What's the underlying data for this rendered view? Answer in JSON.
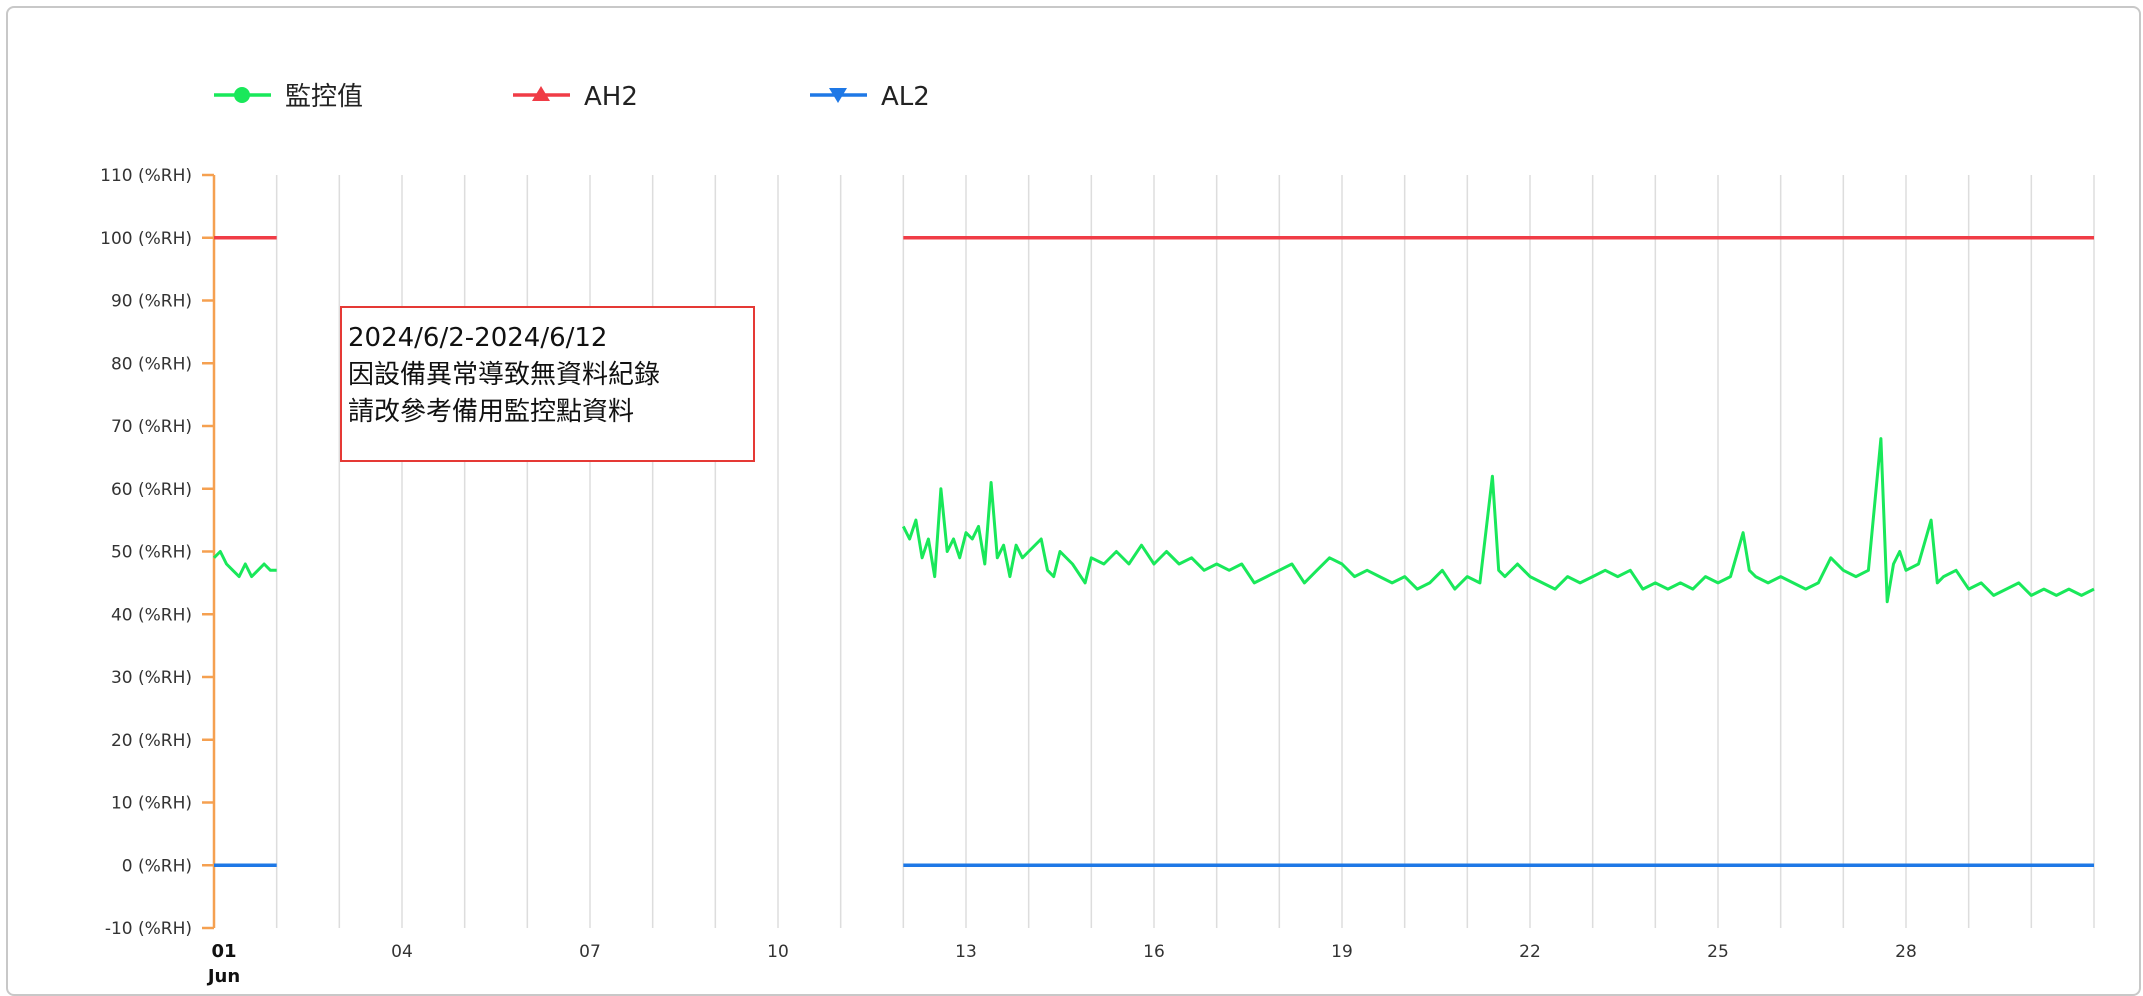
{
  "legend": [
    {
      "label": "監控值",
      "color": "#19e85a",
      "marker": "circle"
    },
    {
      "label": "AH2",
      "color": "#f03c46",
      "marker": "triangle-up"
    },
    {
      "label": "AL2",
      "color": "#1e78e6",
      "marker": "triangle-down"
    }
  ],
  "annotation": {
    "lines": [
      "2024/6/2-2024/6/12",
      "因設備異常導致無資料紀錄",
      "請改參考備用監控點資料"
    ],
    "border_color": "#e53935"
  },
  "chart_data": {
    "type": "line",
    "title": "",
    "ylabel": "",
    "xlabel": "",
    "ylim": [
      -10,
      110
    ],
    "xlim": [
      1,
      31
    ],
    "y_ticks": [
      "110 (%RH)",
      "100 (%RH)",
      "90 (%RH)",
      "80 (%RH)",
      "70 (%RH)",
      "60 (%RH)",
      "50 (%RH)",
      "40 (%RH)",
      "30 (%RH)",
      "20 (%RH)",
      "10 (%RH)",
      "0 (%RH)",
      "-10 (%RH)"
    ],
    "x_ticks": [
      {
        "day": 1,
        "label": "01",
        "sublabel": "Jun",
        "bold": true
      },
      {
        "day": 4,
        "label": "04"
      },
      {
        "day": 7,
        "label": "07"
      },
      {
        "day": 10,
        "label": "10"
      },
      {
        "day": 13,
        "label": "13"
      },
      {
        "day": 16,
        "label": "16"
      },
      {
        "day": 19,
        "label": "19"
      },
      {
        "day": 22,
        "label": "22"
      },
      {
        "day": 25,
        "label": "25"
      },
      {
        "day": 28,
        "label": "28"
      }
    ],
    "grid": "vertical, daily",
    "legend_position": "top-left",
    "series": [
      {
        "name": "監控值",
        "color": "#19e85a",
        "segments": [
          [
            [
              1.0,
              49
            ],
            [
              1.1,
              50
            ],
            [
              1.2,
              48
            ],
            [
              1.3,
              47
            ],
            [
              1.4,
              46
            ],
            [
              1.5,
              48
            ],
            [
              1.6,
              46
            ],
            [
              1.7,
              47
            ],
            [
              1.8,
              48
            ],
            [
              1.9,
              47
            ],
            [
              2.0,
              47
            ]
          ],
          [
            [
              12.0,
              54
            ],
            [
              12.1,
              52
            ],
            [
              12.2,
              55
            ],
            [
              12.3,
              49
            ],
            [
              12.4,
              52
            ],
            [
              12.5,
              46
            ],
            [
              12.6,
              60
            ],
            [
              12.7,
              50
            ],
            [
              12.8,
              52
            ],
            [
              12.9,
              49
            ],
            [
              13.0,
              53
            ],
            [
              13.1,
              52
            ],
            [
              13.2,
              54
            ],
            [
              13.3,
              48
            ],
            [
              13.4,
              61
            ],
            [
              13.5,
              49
            ],
            [
              13.6,
              51
            ],
            [
              13.7,
              46
            ],
            [
              13.8,
              51
            ],
            [
              13.9,
              49
            ],
            [
              14.0,
              50
            ],
            [
              14.2,
              52
            ],
            [
              14.3,
              47
            ],
            [
              14.4,
              46
            ],
            [
              14.5,
              50
            ],
            [
              14.7,
              48
            ],
            [
              14.9,
              45
            ],
            [
              15.0,
              49
            ],
            [
              15.2,
              48
            ],
            [
              15.4,
              50
            ],
            [
              15.6,
              48
            ],
            [
              15.8,
              51
            ],
            [
              16.0,
              48
            ],
            [
              16.2,
              50
            ],
            [
              16.4,
              48
            ],
            [
              16.6,
              49
            ],
            [
              16.8,
              47
            ],
            [
              17.0,
              48
            ],
            [
              17.2,
              47
            ],
            [
              17.4,
              48
            ],
            [
              17.6,
              45
            ],
            [
              17.8,
              46
            ],
            [
              18.0,
              47
            ],
            [
              18.2,
              48
            ],
            [
              18.4,
              45
            ],
            [
              18.6,
              47
            ],
            [
              18.8,
              49
            ],
            [
              19.0,
              48
            ],
            [
              19.2,
              46
            ],
            [
              19.4,
              47
            ],
            [
              19.6,
              46
            ],
            [
              19.8,
              45
            ],
            [
              20.0,
              46
            ],
            [
              20.2,
              44
            ],
            [
              20.4,
              45
            ],
            [
              20.6,
              47
            ],
            [
              20.8,
              44
            ],
            [
              21.0,
              46
            ],
            [
              21.2,
              45
            ],
            [
              21.4,
              62
            ],
            [
              21.5,
              47
            ],
            [
              21.6,
              46
            ],
            [
              21.8,
              48
            ],
            [
              22.0,
              46
            ],
            [
              22.2,
              45
            ],
            [
              22.4,
              44
            ],
            [
              22.6,
              46
            ],
            [
              22.8,
              45
            ],
            [
              23.0,
              46
            ],
            [
              23.2,
              47
            ],
            [
              23.4,
              46
            ],
            [
              23.6,
              47
            ],
            [
              23.8,
              44
            ],
            [
              24.0,
              45
            ],
            [
              24.2,
              44
            ],
            [
              24.4,
              45
            ],
            [
              24.6,
              44
            ],
            [
              24.8,
              46
            ],
            [
              25.0,
              45
            ],
            [
              25.2,
              46
            ],
            [
              25.4,
              53
            ],
            [
              25.5,
              47
            ],
            [
              25.6,
              46
            ],
            [
              25.8,
              45
            ],
            [
              26.0,
              46
            ],
            [
              26.2,
              45
            ],
            [
              26.4,
              44
            ],
            [
              26.6,
              45
            ],
            [
              26.8,
              49
            ],
            [
              27.0,
              47
            ],
            [
              27.2,
              46
            ],
            [
              27.4,
              47
            ],
            [
              27.6,
              68
            ],
            [
              27.7,
              42
            ],
            [
              27.8,
              48
            ],
            [
              27.9,
              50
            ],
            [
              28.0,
              47
            ],
            [
              28.2,
              48
            ],
            [
              28.4,
              55
            ],
            [
              28.5,
              45
            ],
            [
              28.6,
              46
            ],
            [
              28.8,
              47
            ],
            [
              29.0,
              44
            ],
            [
              29.2,
              45
            ],
            [
              29.4,
              43
            ],
            [
              29.6,
              44
            ],
            [
              29.8,
              45
            ],
            [
              30.0,
              43
            ],
            [
              30.2,
              44
            ],
            [
              30.4,
              43
            ],
            [
              30.6,
              44
            ],
            [
              30.8,
              43
            ],
            [
              31.0,
              44
            ]
          ]
        ]
      },
      {
        "name": "AH2",
        "color": "#f03c46",
        "segments": [
          [
            [
              1,
              100
            ],
            [
              2,
              100
            ]
          ],
          [
            [
              12,
              100
            ],
            [
              31,
              100
            ]
          ]
        ]
      },
      {
        "name": "AL2",
        "color": "#1e78e6",
        "segments": [
          [
            [
              1,
              0
            ],
            [
              2,
              0
            ]
          ],
          [
            [
              12,
              0
            ],
            [
              31,
              0
            ]
          ]
        ]
      }
    ]
  }
}
